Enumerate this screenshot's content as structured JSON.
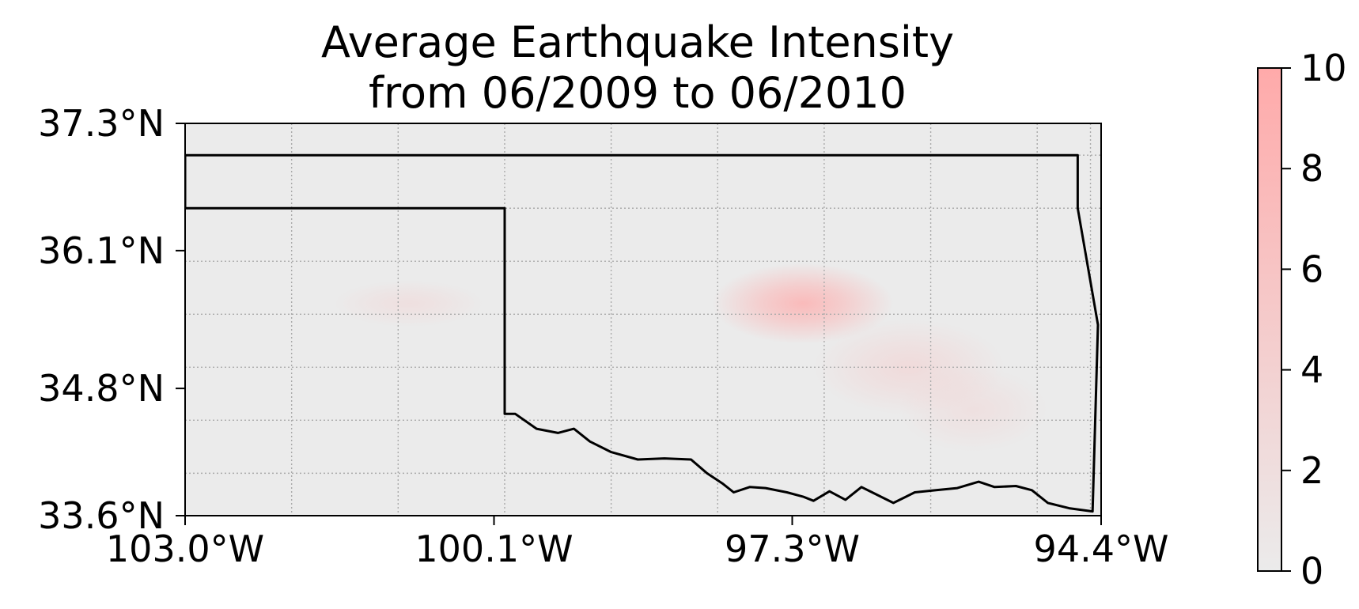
{
  "title_line1": "Average Earthquake Intensity",
  "title_line2": "from 06/2009 to 06/2010",
  "colors": {
    "low": "#ebebeb",
    "high": "#ffaaaa",
    "border": "#000000",
    "grid": "#aaaaaa"
  },
  "chart_data": {
    "type": "heatmap",
    "title": "Average Earthquake Intensity from 06/2009 to 06/2010",
    "x_axis": {
      "label": "",
      "range": [
        -103.0,
        -94.4
      ],
      "ticks": [
        -103.0,
        -100.1,
        -97.3,
        -94.4
      ],
      "tick_labels": [
        "103.0°W",
        "100.1°W",
        "97.3°W",
        "94.4°W"
      ],
      "minor_grid": [
        -102.0,
        -101.0,
        -100.0,
        -99.0,
        -98.0,
        -97.0,
        -96.0,
        -95.0,
        -94.5
      ]
    },
    "y_axis": {
      "label": "",
      "range": [
        33.6,
        37.3
      ],
      "ticks": [
        37.3,
        36.1,
        34.8,
        33.6
      ],
      "tick_labels": [
        "37.3°N",
        "36.1°N",
        "34.8°N",
        "33.6°N"
      ],
      "minor_grid": [
        34.0,
        34.5,
        35.0,
        35.5,
        36.0,
        36.5,
        37.0
      ]
    },
    "colorbar": {
      "min": 0,
      "max": 10,
      "ticks": [
        0,
        2,
        4,
        6,
        8,
        10
      ],
      "tick_labels": [
        "0",
        "2",
        "4",
        "6",
        "8",
        "10"
      ]
    },
    "hotspots": [
      {
        "lon": -97.2,
        "lat": 35.6,
        "intensity": 6.5,
        "spread_lon": 0.85,
        "spread_lat": 0.38
      },
      {
        "lon": -96.2,
        "lat": 35.0,
        "intensity": 2.2,
        "spread_lon": 0.9,
        "spread_lat": 0.45
      },
      {
        "lon": -95.6,
        "lat": 34.6,
        "intensity": 1.5,
        "spread_lon": 0.7,
        "spread_lat": 0.4
      },
      {
        "lon": -100.9,
        "lat": 35.6,
        "intensity": 1.6,
        "spread_lon": 0.7,
        "spread_lat": 0.22
      }
    ],
    "boundary": "Oklahoma state border",
    "boundary_lonlat": [
      [
        -103.0,
        37.0
      ],
      [
        -94.62,
        37.0
      ],
      [
        -94.62,
        36.5
      ],
      [
        -94.43,
        35.4
      ],
      [
        -94.48,
        33.64
      ],
      [
        -94.7,
        33.67
      ],
      [
        -94.9,
        33.72
      ],
      [
        -95.05,
        33.84
      ],
      [
        -95.2,
        33.88
      ],
      [
        -95.4,
        33.87
      ],
      [
        -95.55,
        33.92
      ],
      [
        -95.75,
        33.86
      ],
      [
        -95.95,
        33.84
      ],
      [
        -96.15,
        33.82
      ],
      [
        -96.35,
        33.72
      ],
      [
        -96.55,
        33.82
      ],
      [
        -96.65,
        33.87
      ],
      [
        -96.8,
        33.75
      ],
      [
        -96.95,
        33.83
      ],
      [
        -97.1,
        33.74
      ],
      [
        -97.2,
        33.78
      ],
      [
        -97.35,
        33.82
      ],
      [
        -97.55,
        33.86
      ],
      [
        -97.7,
        33.87
      ],
      [
        -97.85,
        33.82
      ],
      [
        -97.95,
        33.9
      ],
      [
        -98.1,
        34.0
      ],
      [
        -98.25,
        34.13
      ],
      [
        -98.5,
        34.14
      ],
      [
        -98.75,
        34.13
      ],
      [
        -99.0,
        34.2
      ],
      [
        -99.2,
        34.3
      ],
      [
        -99.35,
        34.42
      ],
      [
        -99.5,
        34.38
      ],
      [
        -99.7,
        34.42
      ],
      [
        -99.9,
        34.56
      ],
      [
        -100.0,
        34.56
      ],
      [
        -100.0,
        36.5
      ],
      [
        -103.0,
        36.5
      ],
      [
        -103.0,
        37.0
      ]
    ]
  }
}
